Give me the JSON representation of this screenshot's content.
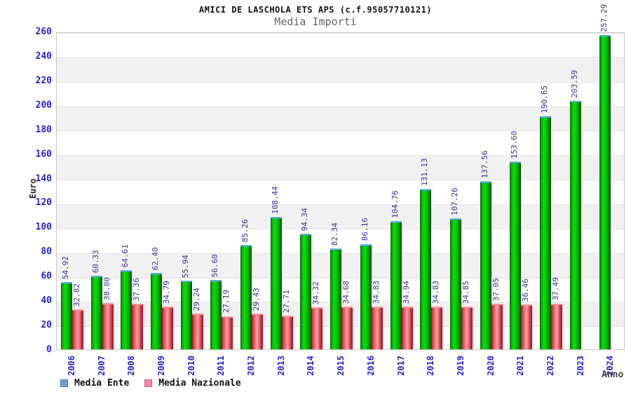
{
  "title": "AMICI DE LASCHOLA ETS APS (c.f.95057710121)",
  "subtitle": "Media Importi",
  "axes": {
    "y_label": "Euro",
    "x_label": "Anno",
    "y_ticks": [
      0,
      20,
      40,
      60,
      80,
      100,
      120,
      140,
      160,
      180,
      200,
      220,
      240,
      260
    ]
  },
  "legend": [
    {
      "label": "Media Ente",
      "color": "#6d9cd6"
    },
    {
      "label": "Media Nazionale",
      "color": "#f585a9"
    }
  ],
  "colors": {
    "bar_green_main": "#00ce00",
    "bar_red_main": "#e05060",
    "tick_label_blue": "#2525cd",
    "value_label_navy": "#3333a2",
    "band_gray": "#f1f1f1"
  },
  "chart_data": {
    "type": "bar",
    "title": "AMICI DE LASCHOLA ETS APS (c.f.95057710121)",
    "subtitle": "Media Importi",
    "xlabel": "Anno",
    "ylabel": "Euro",
    "ylim": [
      0,
      260
    ],
    "y_tick_step": 20,
    "grid": "alternating-horizontal-bands",
    "legend_position": "bottom-left",
    "categories": [
      "2006",
      "2007",
      "2008",
      "2009",
      "2010",
      "2011",
      "2012",
      "2013",
      "2014",
      "2015",
      "2016",
      "2017",
      "2018",
      "2019",
      "2020",
      "2021",
      "2022",
      "2023",
      "2024"
    ],
    "series": [
      {
        "name": "Media Ente",
        "values": [
          54.92,
          60.33,
          64.61,
          62.4,
          55.94,
          56.6,
          85.26,
          108.44,
          94.34,
          82.34,
          86.16,
          104.76,
          131.13,
          107.26,
          137.56,
          153.6,
          190.65,
          203.59,
          257.29
        ]
      },
      {
        "name": "Media Nazionale",
        "values": [
          32.82,
          38.0,
          37.36,
          34.79,
          29.24,
          27.19,
          29.43,
          27.71,
          34.32,
          34.68,
          34.83,
          34.94,
          34.83,
          34.85,
          37.05,
          36.46,
          37.49,
          null,
          null
        ]
      }
    ]
  }
}
